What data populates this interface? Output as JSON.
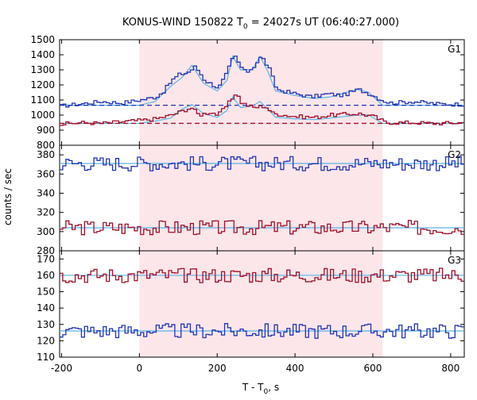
{
  "title": {
    "main": "KONUS-WIND 150822 T",
    "sub": "0",
    "rest": " = 24027s UT (06:40:27.000)"
  },
  "ylabel": "counts / sec",
  "xlabel": {
    "main": "T - T",
    "sub": "0",
    "rest": ", s"
  },
  "colors": {
    "shade": "#fde6ea",
    "blue": "#2233b4",
    "red": "#a0102a",
    "fit": "#5ab4e6",
    "axis": "#000000"
  },
  "chart_data": {
    "type": "line",
    "x_ticks": [
      -200,
      0,
      200,
      400,
      600,
      800
    ],
    "xlim": [
      -205,
      835
    ],
    "shaded_interval": [
      0,
      625
    ],
    "panels": [
      {
        "label": "G1",
        "ylim": [
          800,
          1500
        ],
        "y_ticks": [
          800,
          900,
          1000,
          1100,
          1200,
          1300,
          1400,
          1500
        ],
        "series": [
          {
            "color": "blue",
            "background": 1065,
            "fit": [
              [
                -205,
                1065
              ],
              [
                0,
                1065
              ],
              [
                40,
                1090
              ],
              [
                80,
                1190
              ],
              [
                110,
                1250
              ],
              [
                135,
                1330
              ],
              [
                165,
                1210
              ],
              [
                200,
                1160
              ],
              [
                225,
                1230
              ],
              [
                240,
                1390
              ],
              [
                260,
                1300
              ],
              [
                290,
                1300
              ],
              [
                310,
                1390
              ],
              [
                330,
                1290
              ],
              [
                350,
                1160
              ],
              [
                400,
                1130
              ],
              [
                450,
                1110
              ],
              [
                490,
                1120
              ],
              [
                560,
                1170
              ],
              [
                590,
                1150
              ],
              [
                625,
                1065
              ],
              [
                835,
                1065
              ]
            ],
            "peaks": [
              [
                -205,
                1060
              ],
              [
                -150,
                1075
              ],
              [
                -100,
                1090
              ],
              [
                -50,
                1080
              ],
              [
                0,
                1100
              ],
              [
                40,
                1120
              ],
              [
                60,
                1160
              ],
              [
                80,
                1230
              ],
              [
                100,
                1270
              ],
              [
                120,
                1280
              ],
              [
                140,
                1320
              ],
              [
                150,
                1290
              ],
              [
                165,
                1230
              ],
              [
                200,
                1180
              ],
              [
                220,
                1270
              ],
              [
                240,
                1400
              ],
              [
                255,
                1330
              ],
              [
                270,
                1280
              ],
              [
                290,
                1320
              ],
              [
                310,
                1390
              ],
              [
                330,
                1310
              ],
              [
                340,
                1240
              ],
              [
                350,
                1170
              ],
              [
                400,
                1140
              ],
              [
                440,
                1120
              ],
              [
                480,
                1140
              ],
              [
                520,
                1130
              ],
              [
                560,
                1170
              ],
              [
                590,
                1140
              ],
              [
                620,
                1100
              ],
              [
                640,
                1080
              ],
              [
                700,
                1090
              ],
              [
                760,
                1075
              ],
              [
                835,
                1070
              ]
            ]
          },
          {
            "color": "red",
            "background": 945,
            "fit": [
              [
                -205,
                945
              ],
              [
                0,
                945
              ],
              [
                40,
                960
              ],
              [
                80,
                980
              ],
              [
                110,
                1040
              ],
              [
                135,
                1070
              ],
              [
                165,
                1010
              ],
              [
                200,
                985
              ],
              [
                225,
                1030
              ],
              [
                240,
                1120
              ],
              [
                260,
                1050
              ],
              [
                290,
                1060
              ],
              [
                310,
                1090
              ],
              [
                330,
                1040
              ],
              [
                350,
                985
              ],
              [
                400,
                975
              ],
              [
                450,
                970
              ],
              [
                490,
                980
              ],
              [
                560,
                1000
              ],
              [
                590,
                1000
              ],
              [
                625,
                945
              ],
              [
                835,
                945
              ]
            ],
            "peaks": [
              [
                -205,
                940
              ],
              [
                -150,
                950
              ],
              [
                -100,
                945
              ],
              [
                -50,
                955
              ],
              [
                0,
                965
              ],
              [
                40,
                975
              ],
              [
                80,
                1000
              ],
              [
                110,
                1030
              ],
              [
                130,
                1050
              ],
              [
                150,
                1000
              ],
              [
                180,
                1020
              ],
              [
                200,
                1000
              ],
              [
                230,
                1090
              ],
              [
                245,
                1150
              ],
              [
                260,
                1080
              ],
              [
                290,
                1050
              ],
              [
                320,
                1060
              ],
              [
                340,
                1010
              ],
              [
                400,
                990
              ],
              [
                450,
                985
              ],
              [
                490,
                1000
              ],
              [
                560,
                1010
              ],
              [
                600,
                990
              ],
              [
                630,
                950
              ],
              [
                700,
                950
              ],
              [
                760,
                945
              ],
              [
                835,
                950
              ]
            ]
          }
        ]
      },
      {
        "label": "G2",
        "ylim": [
          280,
          390
        ],
        "y_ticks": [
          280,
          300,
          320,
          340,
          360,
          380
        ],
        "series": [
          {
            "color": "blue",
            "background": 371,
            "fit": [
              [
                -205,
                371
              ],
              [
                835,
                371
              ]
            ]
          },
          {
            "color": "red",
            "background": 304,
            "fit": [
              [
                -205,
                304
              ],
              [
                835,
                304
              ]
            ]
          }
        ]
      },
      {
        "label": "G3",
        "ylim": [
          110,
          175
        ],
        "y_ticks": [
          110,
          120,
          130,
          140,
          150,
          160,
          170
        ],
        "series": [
          {
            "color": "red",
            "background": 160,
            "fit": [
              [
                -205,
                160
              ],
              [
                835,
                160
              ]
            ]
          },
          {
            "color": "blue",
            "background": 126,
            "fit": [
              [
                -205,
                126
              ],
              [
                835,
                126
              ]
            ]
          }
        ]
      }
    ]
  }
}
